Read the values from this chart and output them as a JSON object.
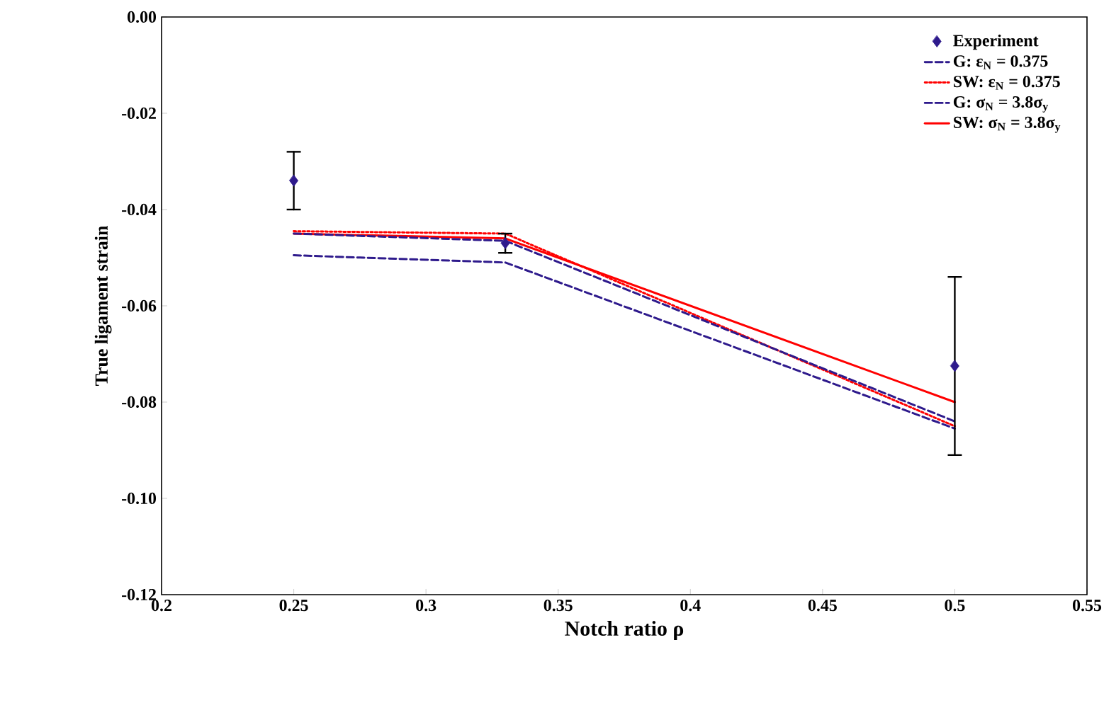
{
  "chart_data": {
    "type": "line",
    "xlabel": "Notch ratio  ρ",
    "ylabel": "True ligament strain",
    "xlim": [
      0.2,
      0.55
    ],
    "xticks": [
      0.2,
      0.25,
      0.3,
      0.35,
      0.4,
      0.45,
      0.5,
      0.55
    ],
    "ylim": [
      -0.12,
      0.0
    ],
    "yticks": [
      {
        "value": -0.12,
        "label": "-0.12"
      },
      {
        "value": -0.1,
        "label": "-0.10"
      },
      {
        "value": -0.08,
        "label": "-0.08"
      },
      {
        "value": -0.06,
        "label": "-0.06"
      },
      {
        "value": -0.04,
        "label": "-0.04"
      },
      {
        "value": -0.02,
        "label": "-0.02"
      },
      {
        "value": 0.0,
        "label": "0.00"
      }
    ],
    "x": [
      0.25,
      0.33,
      0.5
    ],
    "legend": "top right",
    "grid": false,
    "series": [
      {
        "name": "Experiment",
        "type": "scatter",
        "marker": "diamond",
        "color": "#2e1a8c",
        "values": [
          -0.034,
          -0.047,
          -0.0725
        ],
        "errors": [
          [
            -0.04,
            -0.028
          ],
          [
            -0.049,
            -0.045
          ],
          [
            -0.091,
            -0.054
          ]
        ]
      },
      {
        "name": "G:  ε$_{N}$ = 0.375",
        "line_style": "dashed",
        "color": "#2e1a8c",
        "values": [
          -0.045,
          -0.0465,
          -0.084
        ]
      },
      {
        "name": "SW: ε$_{N}$ = 0.375",
        "line_style": "dotted",
        "color": "#ff0000",
        "values": [
          -0.0445,
          -0.045,
          -0.085
        ]
      },
      {
        "name": "G:  σ$_{N}$ = 3.8σ$_{y}$",
        "line_style": "dashed",
        "color": "#2e1a8c",
        "values": [
          -0.0495,
          -0.051,
          -0.0855
        ]
      },
      {
        "name": "SW: σ$_{N}$ = 3.8σ$_{y}$",
        "line_style": "solid",
        "color": "#ff0000",
        "values": [
          -0.045,
          -0.046,
          -0.08
        ]
      }
    ]
  }
}
